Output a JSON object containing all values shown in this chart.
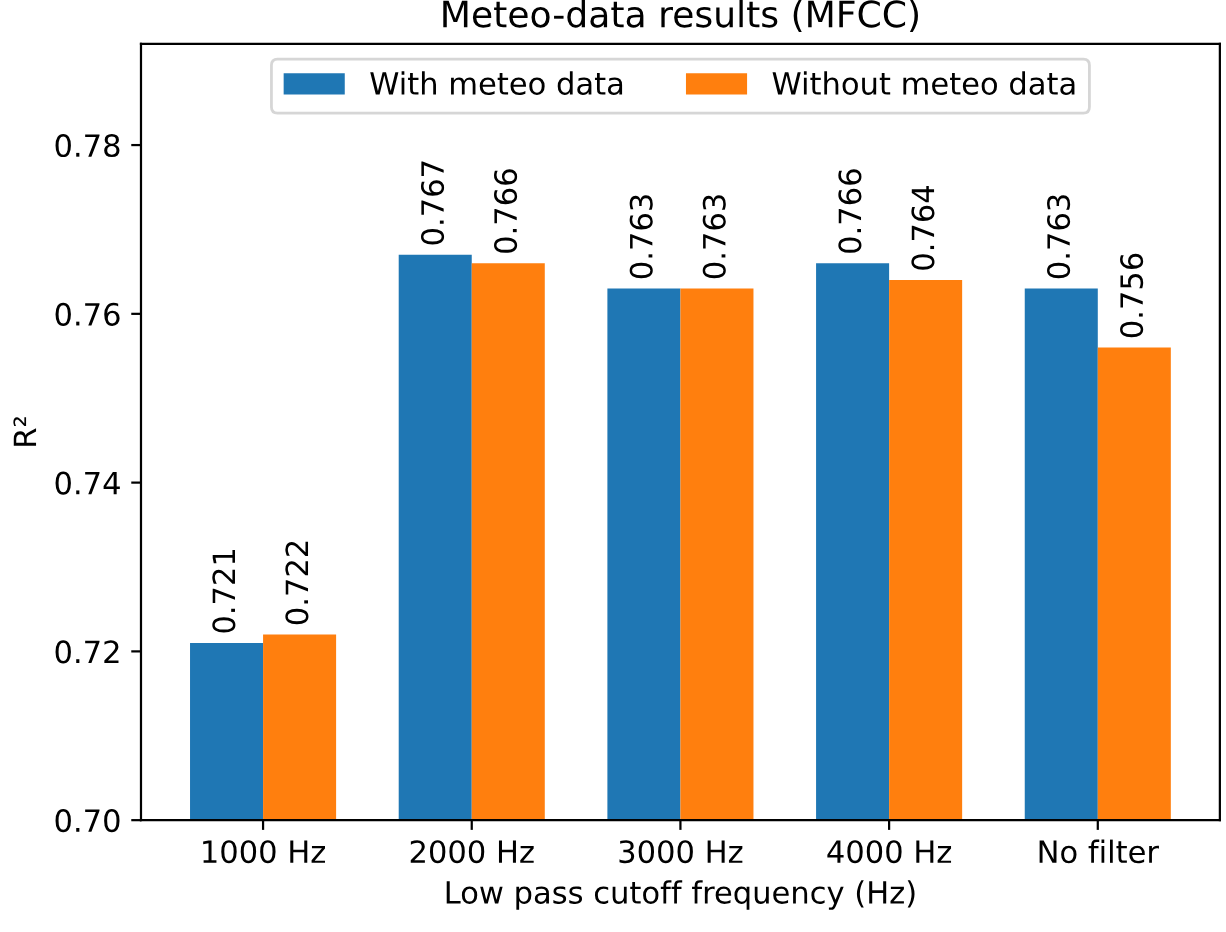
{
  "chart_data": {
    "type": "bar",
    "title": "Meteo-data results (MFCC)",
    "xlabel": "Low pass cutoff frequency (Hz)",
    "ylabel": "R²",
    "categories": [
      "1000 Hz",
      "2000 Hz",
      "3000 Hz",
      "4000 Hz",
      "No filter"
    ],
    "series": [
      {
        "name": "With meteo data",
        "color": "#1f77b4",
        "values": [
          0.721,
          0.767,
          0.763,
          0.766,
          0.763
        ]
      },
      {
        "name": "Without meteo data",
        "color": "#ff7f0e",
        "values": [
          0.722,
          0.766,
          0.763,
          0.764,
          0.756
        ]
      }
    ],
    "ylim": [
      0.7,
      0.792
    ],
    "yticks": [
      {
        "value": 0.7,
        "label": "0.70"
      },
      {
        "value": 0.72,
        "label": "0.72"
      },
      {
        "value": 0.74,
        "label": "0.74"
      },
      {
        "value": 0.76,
        "label": "0.76"
      },
      {
        "value": 0.78,
        "label": "0.78"
      }
    ],
    "data_labels": true,
    "legend": "top",
    "grid": false
  }
}
